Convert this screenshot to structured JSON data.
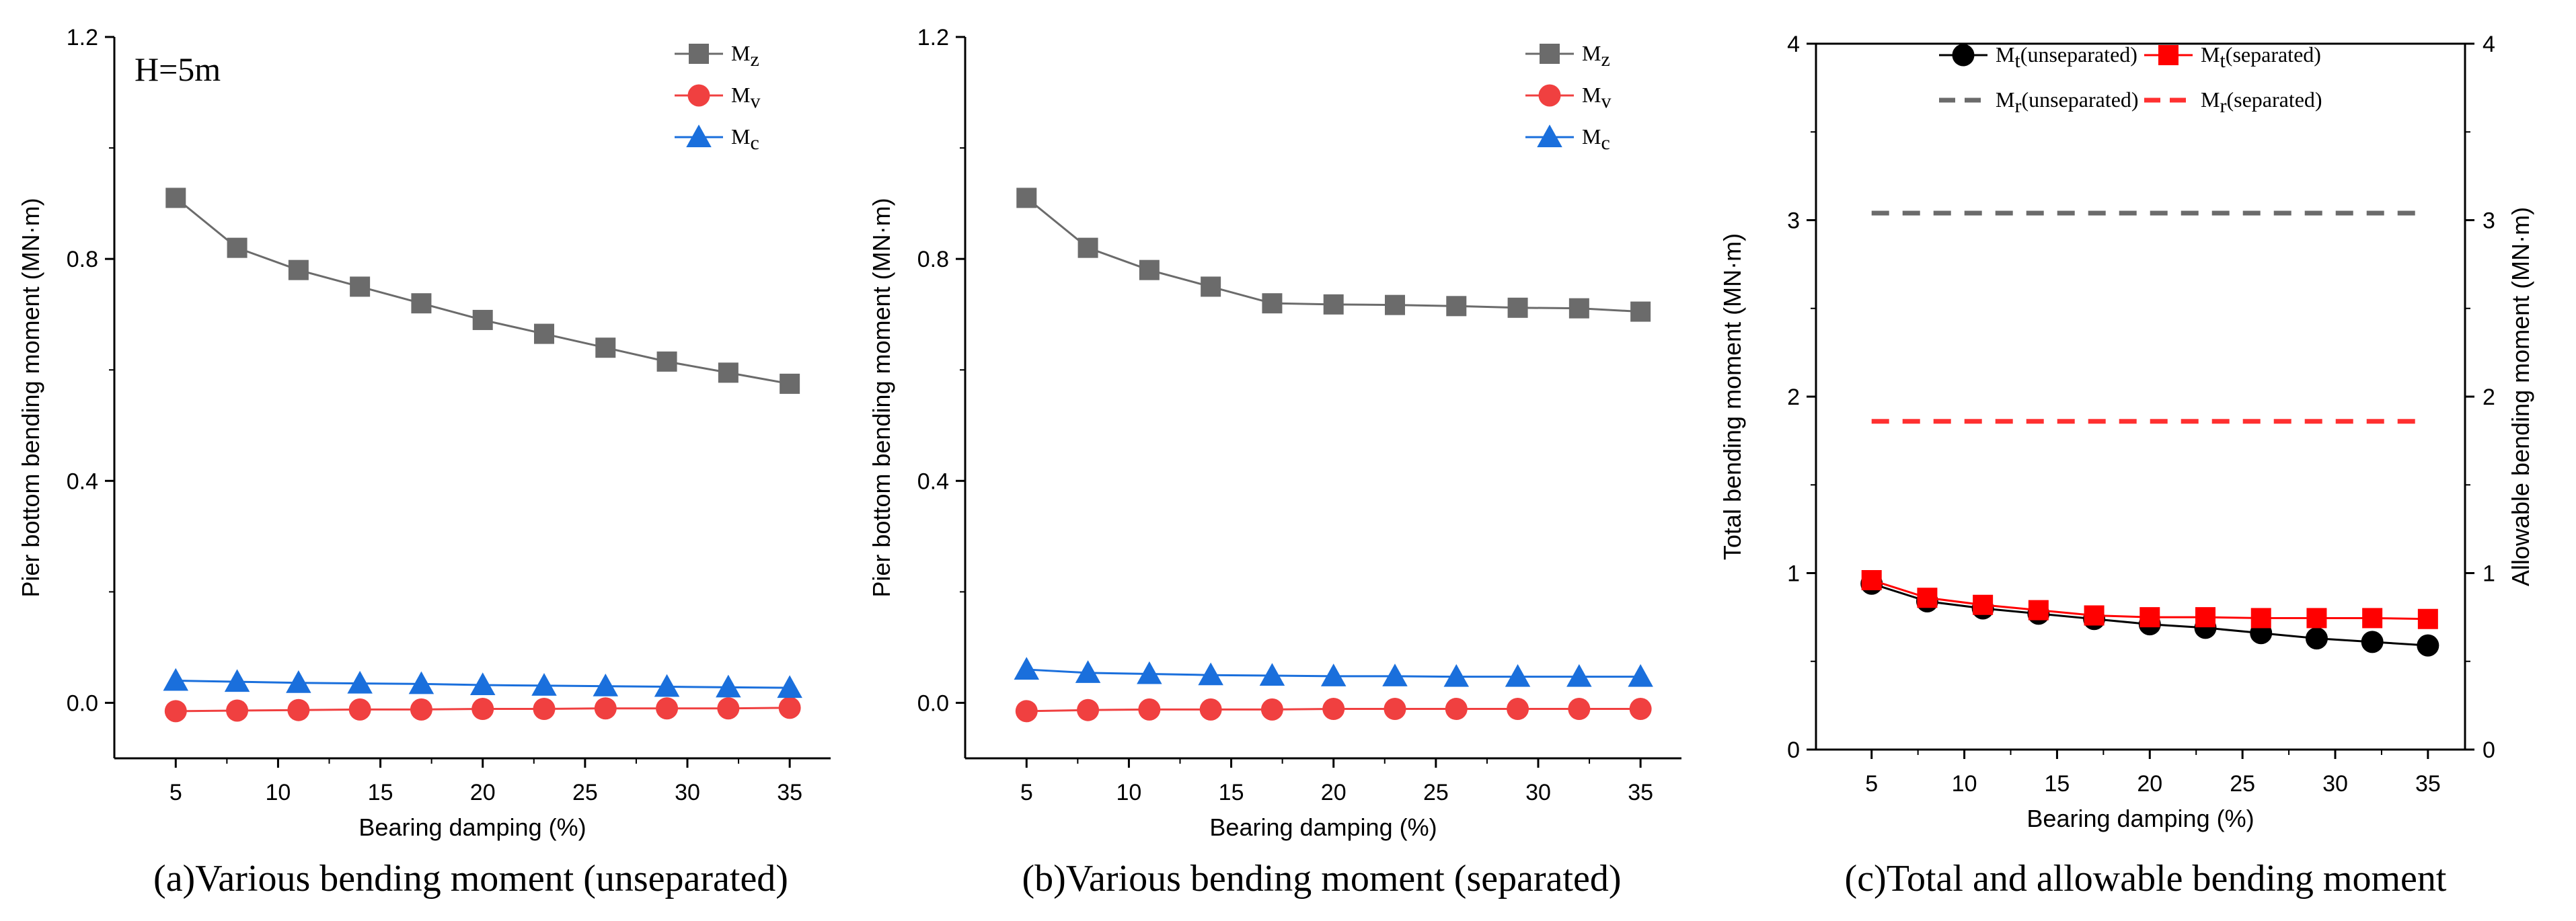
{
  "chart_data": [
    {
      "type": "line",
      "caption": "(a)Various bending moment (unseparated)",
      "annotation": "H=5m",
      "xlabel": "Bearing damping (%)",
      "ylabel": "Pier bottom bending moment (MN·m)",
      "xlim": [
        2,
        37
      ],
      "ylim": [
        -0.1,
        1.2
      ],
      "xticks": [
        5,
        10,
        15,
        20,
        25,
        30,
        35
      ],
      "yticks": [
        0.0,
        0.4,
        0.8,
        1.2
      ],
      "ytick_labels": [
        "0.0",
        "0.4",
        "0.8",
        "1.2"
      ],
      "x": [
        5,
        8,
        11,
        14,
        17,
        20,
        23,
        26,
        29,
        32,
        35
      ],
      "series": [
        {
          "name": "M",
          "sub": "z",
          "color": "#6b6b6b",
          "marker": "square",
          "values": [
            0.91,
            0.82,
            0.78,
            0.75,
            0.72,
            0.69,
            0.665,
            0.64,
            0.615,
            0.595,
            0.575
          ]
        },
        {
          "name": "M",
          "sub": "v",
          "color": "#f04040",
          "marker": "circle",
          "values": [
            -0.015,
            -0.014,
            -0.013,
            -0.012,
            -0.012,
            -0.011,
            -0.011,
            -0.01,
            -0.01,
            -0.01,
            -0.009
          ]
        },
        {
          "name": "M",
          "sub": "c",
          "color": "#1a6fdc",
          "marker": "triangle",
          "values": [
            0.04,
            0.038,
            0.036,
            0.035,
            0.034,
            0.032,
            0.031,
            0.03,
            0.029,
            0.028,
            0.027
          ]
        }
      ],
      "legend_position": "top-right"
    },
    {
      "type": "line",
      "caption": "(b)Various bending moment (separated)",
      "annotation": "",
      "xlabel": "Bearing damping (%)",
      "ylabel": "Pier bottom bending moment (MN·m)",
      "xlim": [
        2,
        37
      ],
      "ylim": [
        -0.1,
        1.2
      ],
      "xticks": [
        5,
        10,
        15,
        20,
        25,
        30,
        35
      ],
      "yticks": [
        0.0,
        0.4,
        0.8,
        1.2
      ],
      "ytick_labels": [
        "0.0",
        "0.4",
        "0.8",
        "1.2"
      ],
      "x": [
        5,
        8,
        11,
        14,
        17,
        20,
        23,
        26,
        29,
        32,
        35
      ],
      "series": [
        {
          "name": "M",
          "sub": "z",
          "color": "#6b6b6b",
          "marker": "square",
          "values": [
            0.91,
            0.82,
            0.78,
            0.75,
            0.72,
            0.718,
            0.717,
            0.715,
            0.712,
            0.711,
            0.705
          ]
        },
        {
          "name": "M",
          "sub": "v",
          "color": "#f04040",
          "marker": "circle",
          "values": [
            -0.015,
            -0.013,
            -0.012,
            -0.012,
            -0.012,
            -0.011,
            -0.011,
            -0.011,
            -0.011,
            -0.011,
            -0.011
          ]
        },
        {
          "name": "M",
          "sub": "c",
          "color": "#1a6fdc",
          "marker": "triangle",
          "values": [
            0.06,
            0.054,
            0.052,
            0.05,
            0.049,
            0.048,
            0.048,
            0.047,
            0.047,
            0.047,
            0.047
          ]
        }
      ],
      "legend_position": "top-right"
    },
    {
      "type": "line",
      "caption": "(c)Total and allowable bending moment",
      "annotation": "",
      "xlabel": "Bearing damping (%)",
      "ylabel": "Total bending moment (MN·m)",
      "ylabel_right": "Allowable bending moment (MN·m)",
      "xlim": [
        2,
        37
      ],
      "ylim": [
        0,
        4
      ],
      "xticks": [
        5,
        10,
        15,
        20,
        25,
        30,
        35
      ],
      "yticks": [
        0,
        1,
        2,
        3,
        4
      ],
      "ytick_labels": [
        "0",
        "1",
        "2",
        "3",
        "4"
      ],
      "x": [
        5,
        8,
        11,
        14,
        17,
        20,
        23,
        26,
        29,
        32,
        35
      ],
      "series": [
        {
          "name": "M",
          "sub": "t",
          "suffix": "(unseparated)",
          "color": "#000000",
          "marker": "circle",
          "values": [
            0.94,
            0.84,
            0.8,
            0.77,
            0.74,
            0.71,
            0.69,
            0.66,
            0.63,
            0.61,
            0.59
          ]
        },
        {
          "name": "M",
          "sub": "t",
          "suffix": "(separated)",
          "color": "#ff0000",
          "marker": "square",
          "values": [
            0.96,
            0.86,
            0.82,
            0.79,
            0.76,
            0.75,
            0.75,
            0.745,
            0.745,
            0.745,
            0.74
          ]
        },
        {
          "name": "M",
          "sub": "r",
          "suffix": "(unseparated)",
          "color": "#6b6b6b",
          "marker": "none",
          "dashed": true,
          "values": [
            3.04,
            3.04,
            3.04,
            3.04,
            3.04,
            3.04,
            3.04,
            3.04,
            3.04,
            3.04,
            3.04
          ]
        },
        {
          "name": "M",
          "sub": "r",
          "suffix": "(separated)",
          "color": "#ff3030",
          "marker": "none",
          "dashed": true,
          "values": [
            1.86,
            1.86,
            1.86,
            1.86,
            1.86,
            1.86,
            1.86,
            1.86,
            1.86,
            1.86,
            1.86
          ]
        }
      ],
      "legend_position": "top"
    }
  ]
}
